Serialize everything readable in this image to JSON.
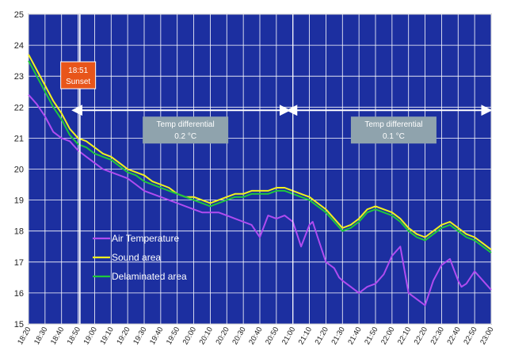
{
  "chart_data": {
    "type": "line",
    "title": "",
    "xlabel": "",
    "ylabel": "",
    "ylim": [
      15,
      25
    ],
    "grid": true,
    "legend_position": "bottom-left",
    "x_tick_labels": [
      "18:20",
      "18:30",
      "18:40",
      "18:50",
      "19:00",
      "19:10",
      "19:20",
      "19:30",
      "19:40",
      "19:50",
      "20:00",
      "20:10",
      "20:20",
      "20:30",
      "20:40",
      "20:50",
      "21:00",
      "21:10",
      "21:20",
      "21:30",
      "21:40",
      "21:50",
      "22:00",
      "22:10",
      "22:20",
      "22:30",
      "22:40",
      "22:50",
      "23:00"
    ],
    "y_ticks": [
      15,
      16,
      17,
      18,
      19,
      20,
      21,
      22,
      23,
      24,
      25
    ],
    "x_range_minutes_after_start": [
      0,
      280
    ],
    "colors": {
      "plot_background": "#1c2fa0",
      "grid": "#ffffff",
      "air_temperature": "#b04cf0",
      "sound_area": "#f2f21e",
      "delaminated_area": "#1ec83c",
      "sunset_box": "#e8551a",
      "differential_box": "#8fa3ad"
    },
    "series": [
      {
        "name": "Air Temperature",
        "x": [
          0,
          5,
          10,
          15,
          20,
          25,
          30,
          35,
          40,
          45,
          50,
          55,
          60,
          65,
          70,
          75,
          80,
          85,
          90,
          95,
          100,
          105,
          110,
          115,
          120,
          125,
          130,
          135,
          140,
          145,
          150,
          155,
          160,
          165,
          170,
          172,
          175,
          180,
          185,
          188,
          190,
          195,
          200,
          205,
          210,
          215,
          220,
          225,
          230,
          235,
          240,
          245,
          250,
          255,
          260,
          262,
          265,
          270,
          275,
          280
        ],
        "y": [
          22.4,
          22.1,
          21.7,
          21.2,
          21.0,
          20.9,
          20.6,
          20.4,
          20.2,
          20.0,
          19.9,
          19.8,
          19.7,
          19.5,
          19.3,
          19.2,
          19.1,
          19.0,
          18.9,
          18.8,
          18.7,
          18.6,
          18.6,
          18.6,
          18.5,
          18.4,
          18.3,
          18.2,
          17.8,
          18.5,
          18.4,
          18.5,
          18.3,
          17.5,
          18.2,
          18.3,
          17.8,
          17.0,
          16.8,
          16.5,
          16.4,
          16.2,
          16.0,
          16.2,
          16.3,
          16.6,
          17.2,
          17.5,
          16.0,
          15.8,
          15.6,
          16.4,
          16.9,
          17.1,
          16.4,
          16.2,
          16.3,
          16.7,
          16.4,
          16.1
        ]
      },
      {
        "name": "Sound area",
        "x": [
          0,
          5,
          10,
          15,
          20,
          25,
          30,
          35,
          40,
          45,
          50,
          55,
          60,
          65,
          70,
          75,
          80,
          85,
          90,
          95,
          100,
          105,
          110,
          115,
          120,
          125,
          130,
          135,
          140,
          145,
          150,
          155,
          160,
          165,
          170,
          175,
          180,
          185,
          190,
          195,
          200,
          205,
          210,
          215,
          220,
          225,
          230,
          235,
          240,
          245,
          250,
          255,
          260,
          265,
          270,
          275,
          280
        ],
        "y": [
          23.7,
          23.2,
          22.7,
          22.2,
          21.8,
          21.3,
          21.0,
          20.9,
          20.7,
          20.5,
          20.4,
          20.2,
          20.0,
          19.9,
          19.8,
          19.6,
          19.5,
          19.4,
          19.2,
          19.1,
          19.1,
          19.0,
          18.9,
          19.0,
          19.1,
          19.2,
          19.2,
          19.3,
          19.3,
          19.3,
          19.4,
          19.4,
          19.3,
          19.2,
          19.1,
          18.9,
          18.7,
          18.4,
          18.1,
          18.2,
          18.4,
          18.7,
          18.8,
          18.7,
          18.6,
          18.4,
          18.1,
          17.9,
          17.8,
          18.0,
          18.2,
          18.3,
          18.1,
          17.9,
          17.8,
          17.6,
          17.4
        ]
      },
      {
        "name": "Delaminated area",
        "x": [
          0,
          5,
          10,
          15,
          20,
          25,
          30,
          35,
          40,
          45,
          50,
          55,
          60,
          65,
          70,
          75,
          80,
          85,
          90,
          95,
          100,
          105,
          110,
          115,
          120,
          125,
          130,
          135,
          140,
          145,
          150,
          155,
          160,
          165,
          170,
          175,
          180,
          185,
          190,
          195,
          200,
          205,
          210,
          215,
          220,
          225,
          230,
          235,
          240,
          245,
          250,
          255,
          260,
          265,
          270,
          275,
          280
        ],
        "y": [
          23.5,
          23.0,
          22.5,
          22.0,
          21.6,
          21.1,
          20.8,
          20.7,
          20.5,
          20.4,
          20.3,
          20.1,
          19.9,
          19.8,
          19.6,
          19.5,
          19.4,
          19.3,
          19.2,
          19.1,
          19.0,
          18.9,
          18.8,
          18.9,
          19.0,
          19.1,
          19.1,
          19.2,
          19.2,
          19.2,
          19.3,
          19.3,
          19.2,
          19.1,
          19.0,
          18.8,
          18.6,
          18.3,
          18.0,
          18.1,
          18.3,
          18.6,
          18.7,
          18.6,
          18.5,
          18.3,
          18.0,
          17.8,
          17.7,
          17.9,
          18.1,
          18.2,
          18.0,
          17.8,
          17.7,
          17.5,
          17.3
        ]
      }
    ],
    "annotations": {
      "sunset": {
        "time": "18:51",
        "label": "Sunset",
        "x_minutes": 31
      },
      "event_line": {
        "x_minutes": 160
      },
      "differentials": [
        {
          "label": "Temp differential",
          "value": "0.2 °C",
          "x_start": 32,
          "x_end": 158,
          "y": 21.9
        },
        {
          "label": "Temp differential",
          "value": "0.1 °C",
          "x_start": 162,
          "x_end": 280,
          "y": 21.9
        }
      ]
    }
  }
}
